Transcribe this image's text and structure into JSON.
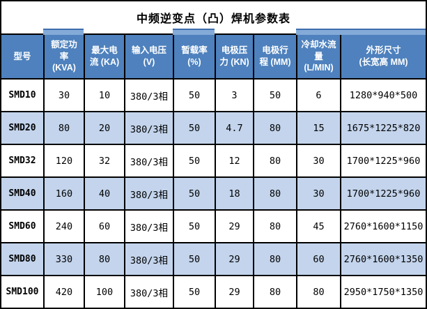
{
  "title": "中频逆变点（凸）焊机参数表",
  "colors": {
    "header_bg": "#4E81BD",
    "header_text": "#FFFFFF",
    "row_alt_bg": "#C3D4EC",
    "cap_bg": "#84AAD8",
    "cap_line": "#3E6DAE",
    "border": "#000000",
    "title_text": "#000000",
    "body_text": "#000000",
    "table_bg": "#FFFFFF"
  },
  "table": {
    "columns": [
      {
        "label": "型号",
        "cap": false
      },
      {
        "label": "额定功\n率\n(KVA)",
        "cap": true
      },
      {
        "label": "最大电\n流 (KA)",
        "cap": false
      },
      {
        "label": "输入电压\n(V)",
        "cap": false
      },
      {
        "label": "暂载率\n(%)",
        "cap": true
      },
      {
        "label": "电极压\n力 (KN)",
        "cap": false
      },
      {
        "label": "电极行\n程 (MM)",
        "cap": false
      },
      {
        "label": "冷却水流\n量\n(L/MIN)",
        "cap": true
      },
      {
        "label": "外形尺寸\n(长宽高 MM)",
        "cap": true
      }
    ],
    "rows": [
      {
        "model": "SMD10",
        "values": [
          "30",
          "10",
          "380/3相",
          "50",
          "3",
          "50",
          "6",
          "1280*940*500"
        ]
      },
      {
        "model": "SMD20",
        "values": [
          "80",
          "20",
          "380/3相",
          "50",
          "4.7",
          "80",
          "15",
          "1675*1225*820"
        ]
      },
      {
        "model": "SMD32",
        "values": [
          "120",
          "32",
          "380/3相",
          "50",
          "12",
          "80",
          "30",
          "1700*1225*960"
        ]
      },
      {
        "model": "SMD40",
        "values": [
          "160",
          "40",
          "380/3相",
          "50",
          "18",
          "80",
          "30",
          "1700*1225*960"
        ]
      },
      {
        "model": "SMD60",
        "values": [
          "240",
          "60",
          "380/3相",
          "50",
          "29",
          "80",
          "45",
          "2760*1600*1150"
        ]
      },
      {
        "model": "SMD80",
        "values": [
          "330",
          "80",
          "380/3相",
          "50",
          "29",
          "80",
          "60",
          "2760*1600*1350"
        ]
      },
      {
        "model": "SMD100",
        "values": [
          "420",
          "100",
          "380/3相",
          "50",
          "29",
          "80",
          "80",
          "2950*1750*1350"
        ]
      }
    ]
  }
}
